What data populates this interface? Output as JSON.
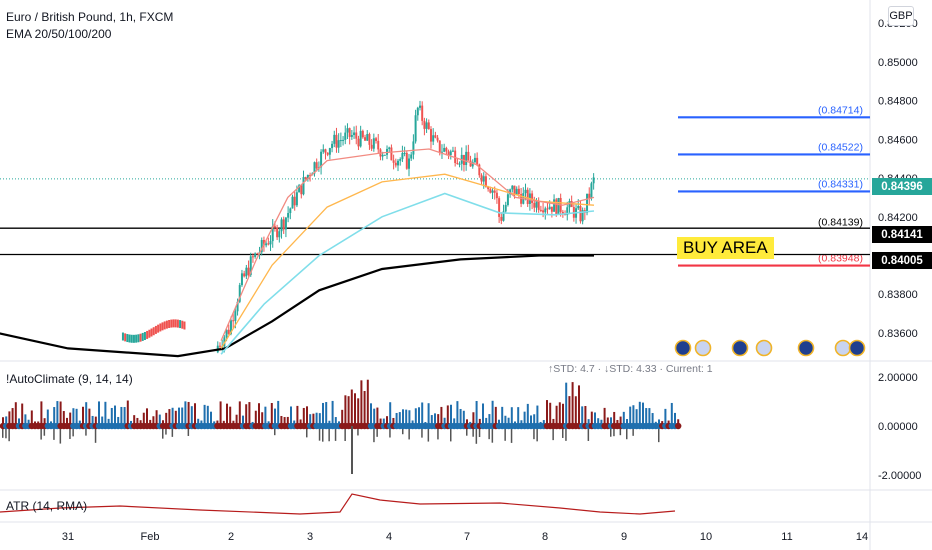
{
  "header": {
    "title": "Euro / British Pound, 1h, FXCM",
    "indicator": "EMA 20/50/100/200",
    "currency": "GBP"
  },
  "pane_labels": {
    "autoclimate": "!AutoClimate (9, 14, 14)",
    "atr": "ATR (14, RMA)",
    "std_readout": "↑STD: 4.7 · ↓STD: 4.33 · Current: 1"
  },
  "annotations": {
    "buy_area": "BUY AREA"
  },
  "badges": {
    "current_price": "0.84396",
    "level_top": "0.84141",
    "level_bottom": "0.84005"
  },
  "colors": {
    "up": "#26a69a",
    "down": "#ef5350",
    "blue_level": "#2962ff",
    "red_level": "#f23645",
    "ema20": "#f28b82",
    "ema50": "#ffb74d",
    "ema100": "#80deea",
    "ema200": "#000000",
    "vol_blue": "#1f6fae",
    "vol_red": "#8b1a1a"
  },
  "chart_data": {
    "type": "line",
    "x_ticks": [
      "31",
      "Feb",
      "2",
      "3",
      "4",
      "7",
      "8",
      "9",
      "10",
      "11",
      "14"
    ],
    "y_ticks": [
      "0.85200",
      "0.85000",
      "0.84800",
      "0.84600",
      "0.84400",
      "0.84200",
      "0.84000",
      "0.83800",
      "0.83600"
    ],
    "ylim": [
      0.8346,
      0.8532
    ],
    "price_series": [
      {
        "x": 2.9,
        "y": 0.8353
      },
      {
        "x": 3.05,
        "y": 0.8362
      },
      {
        "x": 3.2,
        "y": 0.8385
      },
      {
        "x": 3.35,
        "y": 0.8398
      },
      {
        "x": 3.55,
        "y": 0.8408
      },
      {
        "x": 3.75,
        "y": 0.8418
      },
      {
        "x": 3.9,
        "y": 0.843
      },
      {
        "x": 4.1,
        "y": 0.8445
      },
      {
        "x": 4.35,
        "y": 0.8458
      },
      {
        "x": 4.6,
        "y": 0.8462
      },
      {
        "x": 4.85,
        "y": 0.8458
      },
      {
        "x": 5.1,
        "y": 0.8452
      },
      {
        "x": 5.35,
        "y": 0.8448
      },
      {
        "x": 5.45,
        "y": 0.8476
      },
      {
        "x": 5.7,
        "y": 0.8456
      },
      {
        "x": 5.95,
        "y": 0.8452
      },
      {
        "x": 6.2,
        "y": 0.8446
      },
      {
        "x": 6.45,
        "y": 0.8432
      },
      {
        "x": 6.5,
        "y": 0.8418
      },
      {
        "x": 6.65,
        "y": 0.8434
      },
      {
        "x": 6.9,
        "y": 0.8428
      },
      {
        "x": 7.15,
        "y": 0.8426
      },
      {
        "x": 7.4,
        "y": 0.8424
      },
      {
        "x": 7.55,
        "y": 0.842
      },
      {
        "x": 7.7,
        "y": 0.8439
      }
    ],
    "horizontal_levels": [
      {
        "label": "(0.84714)",
        "value": 0.84714,
        "style": "blue"
      },
      {
        "label": "(0.84522)",
        "value": 0.84522,
        "style": "blue"
      },
      {
        "label": "(0.84331)",
        "value": 0.84331,
        "style": "blue"
      },
      {
        "label": "(0.84139)",
        "value": 0.84139,
        "style": "black"
      },
      {
        "label": "(0.83948)",
        "value": 0.83948,
        "style": "red"
      }
    ],
    "black_lines": [
      0.84141,
      0.84005
    ],
    "current_price_line": 0.84396,
    "oscillator": {
      "y_ticks": [
        "2.00000",
        "0.00000",
        "-2.00000"
      ],
      "ylim": [
        -2.6,
        2.6
      ]
    },
    "atr": {
      "y_ticks": []
    }
  }
}
